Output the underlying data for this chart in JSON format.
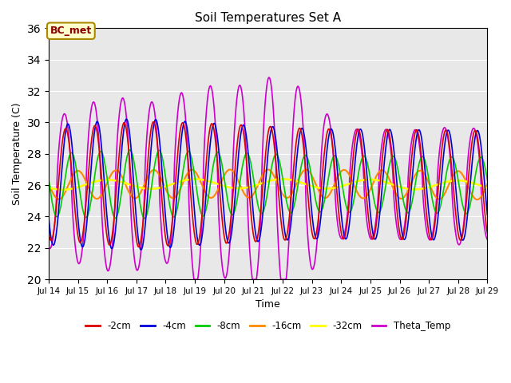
{
  "title": "Soil Temperatures Set A",
  "xlabel": "Time",
  "ylabel": "Soil Temperature (C)",
  "ylim": [
    20,
    36
  ],
  "xlim_days": [
    14,
    29
  ],
  "annotation_text": "BC_met",
  "annotation_bg": "#FFFFCC",
  "annotation_border": "#AA8800",
  "annotation_text_color": "#880000",
  "bg_color": "#E8E8E8",
  "series": {
    "-2cm": {
      "color": "#DD0000",
      "lw": 1.2
    },
    "-4cm": {
      "color": "#0000DD",
      "lw": 1.2
    },
    "-8cm": {
      "color": "#00CC00",
      "lw": 1.2
    },
    "-16cm": {
      "color": "#FF8800",
      "lw": 1.5
    },
    "-32cm": {
      "color": "#FFFF00",
      "lw": 1.8
    },
    "Theta_Temp": {
      "color": "#CC00CC",
      "lw": 1.2
    }
  },
  "legend_order": [
    "-2cm",
    "-4cm",
    "-8cm",
    "-16cm",
    "-32cm",
    "Theta_Temp"
  ],
  "yticks": [
    20,
    22,
    24,
    26,
    28,
    30,
    32,
    34,
    36
  ],
  "xtick_labels": [
    "Jul 14",
    "Jul 15",
    "Jul 16",
    "Jul 17",
    "Jul 18",
    "Jul 19",
    "Jul 20",
    "Jul 21",
    "Jul 22",
    "Jul 23",
    "Jul 24",
    "Jul 25",
    "Jul 26",
    "Jul 27",
    "Jul 28",
    "Jul 29"
  ]
}
